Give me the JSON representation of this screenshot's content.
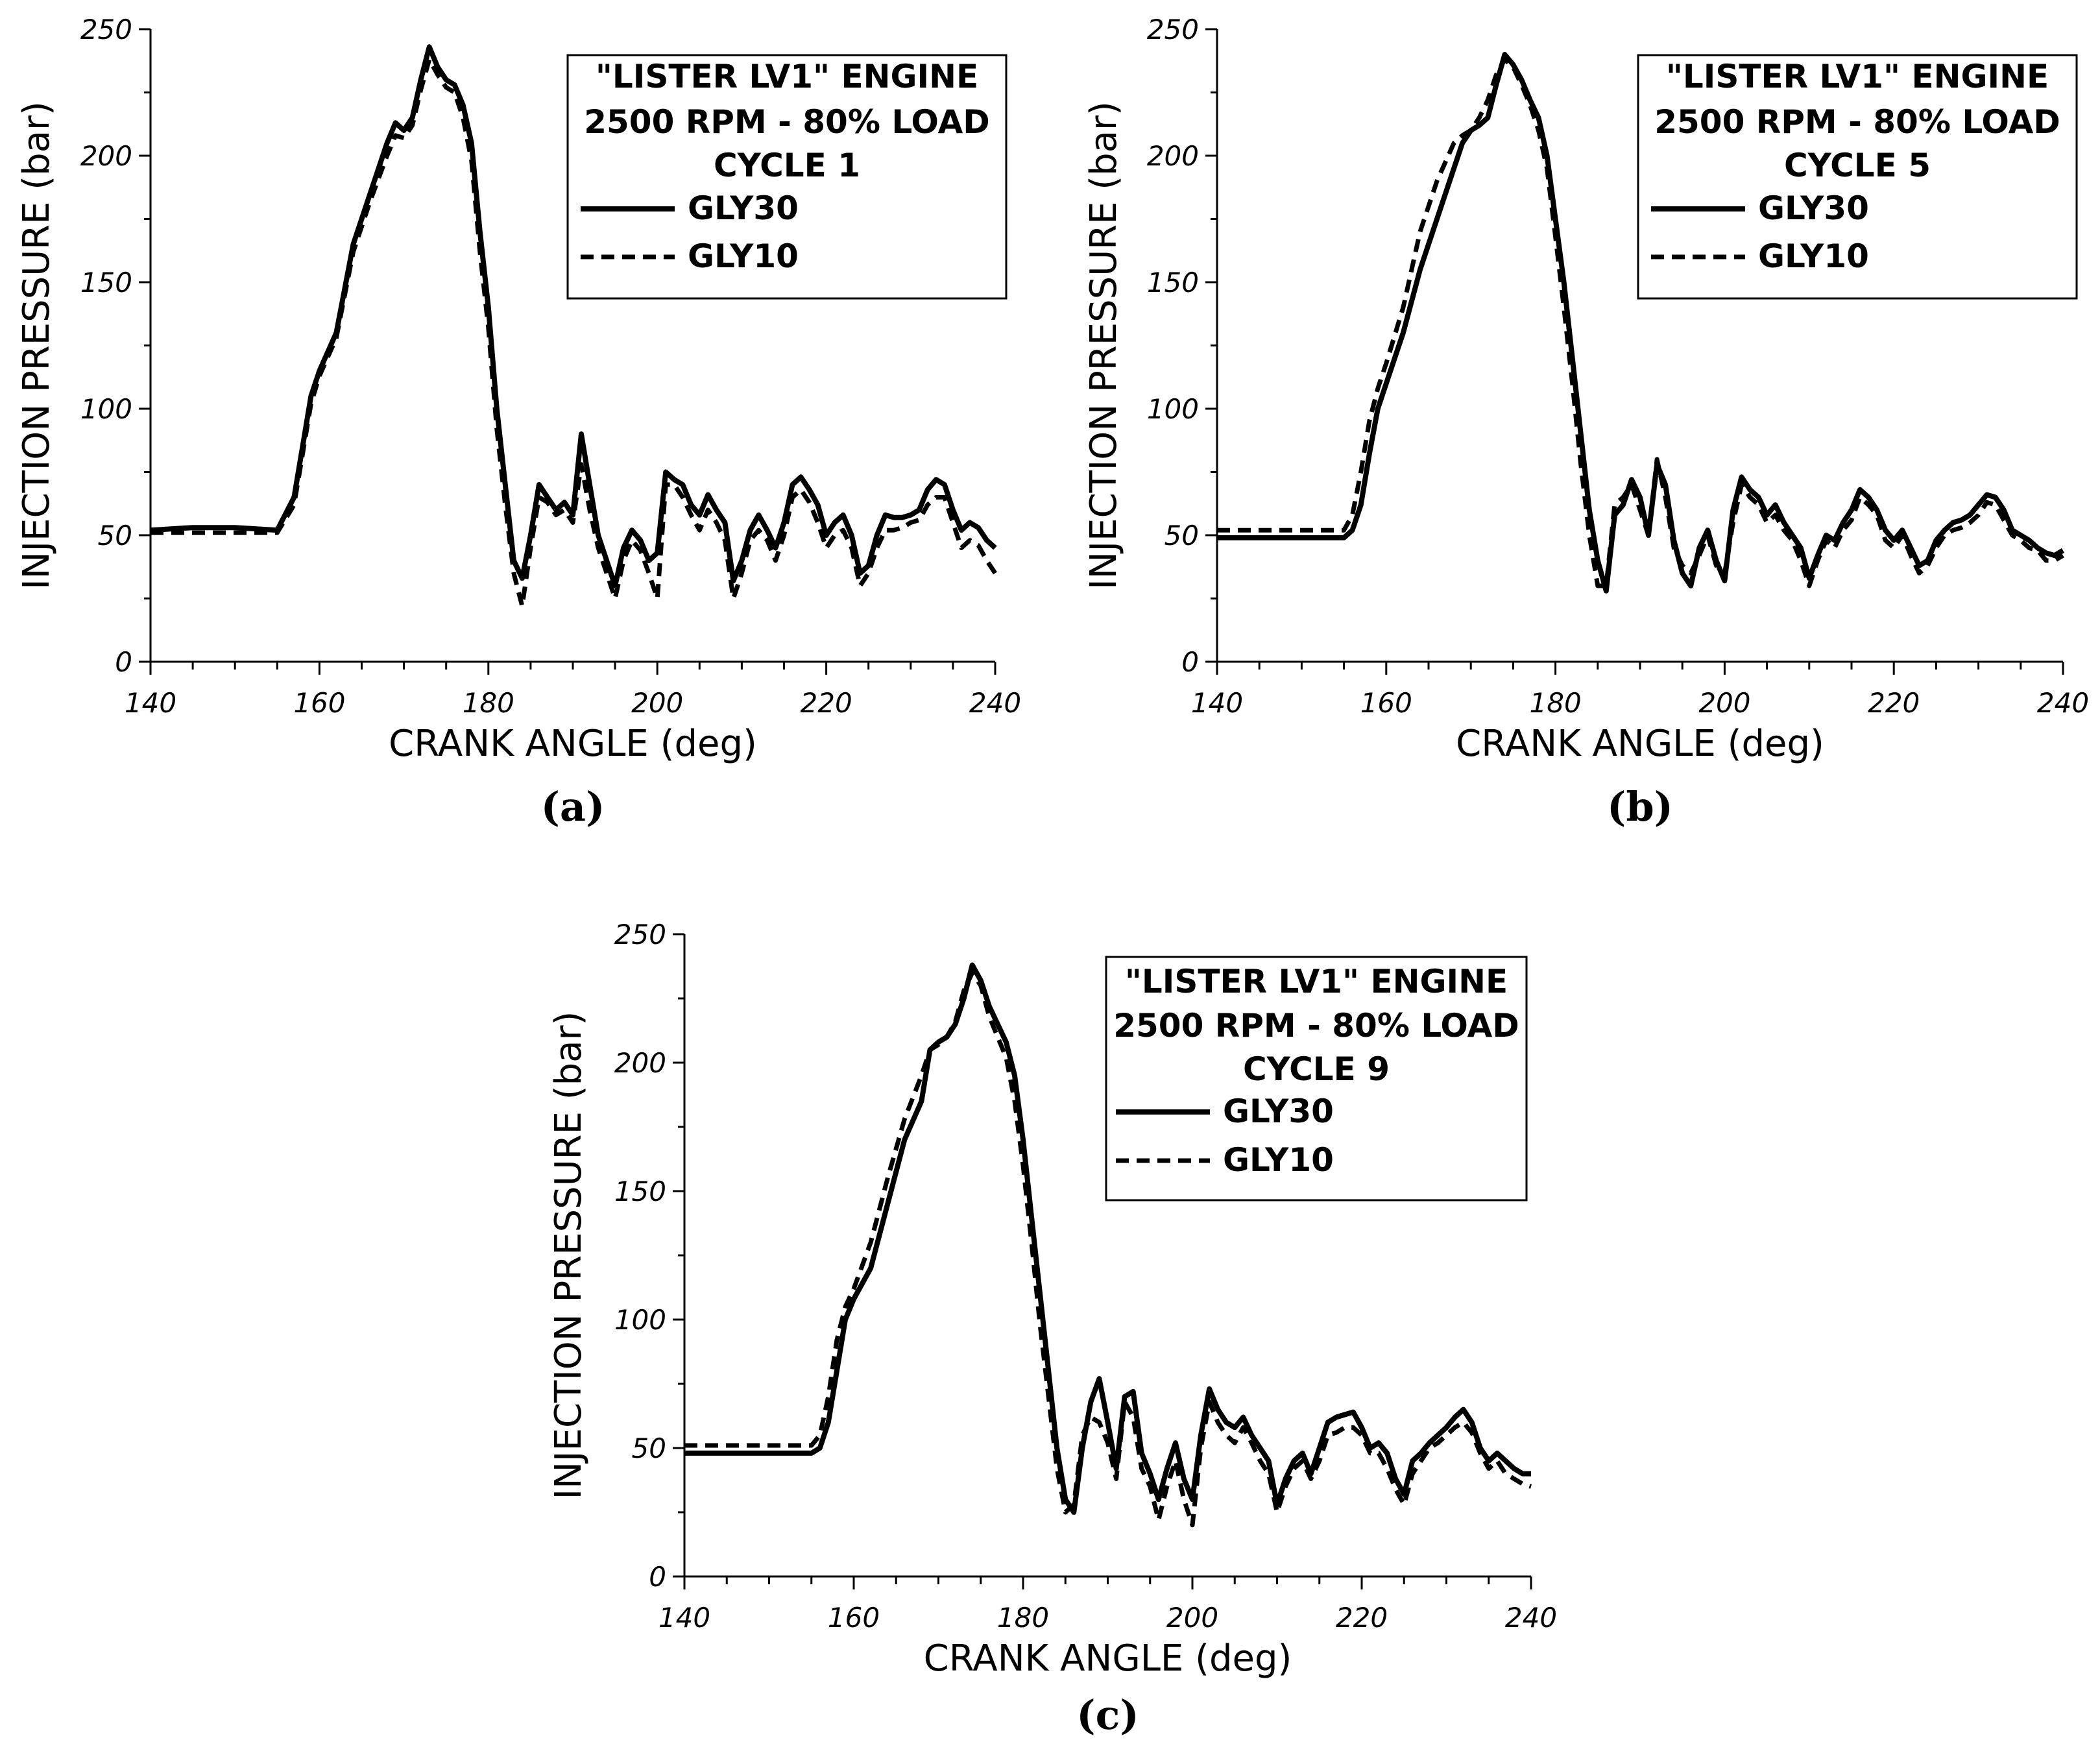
{
  "chart_data": [
    {
      "type": "line",
      "panel_label": "(a)",
      "xlabel": "CRANK ANGLE (deg)",
      "ylabel": "INJECTION PRESSURE (bar)",
      "xlim": [
        140,
        240
      ],
      "ylim": [
        0,
        250
      ],
      "xticks": [
        140,
        160,
        180,
        200,
        220,
        240
      ],
      "yticks": [
        0,
        50,
        100,
        150,
        200,
        250
      ],
      "legend": {
        "title_lines": [
          "\"LISTER LV1\" ENGINE",
          "2500 RPM - 80% LOAD",
          "CYCLE 1"
        ],
        "position": "top-right"
      },
      "series": [
        {
          "name": "GLY30",
          "style": "solid",
          "x": [
            140,
            145,
            150,
            155,
            157,
            158,
            159,
            160,
            162,
            164,
            166,
            168,
            169,
            170,
            171,
            172,
            173,
            174,
            175,
            176,
            177,
            178,
            179,
            180,
            181,
            182,
            183,
            184,
            185,
            186,
            187,
            188,
            189,
            190,
            191,
            192,
            193,
            194,
            195,
            196,
            197,
            198,
            199,
            200,
            201,
            202,
            203,
            204,
            205,
            206,
            207,
            208,
            209,
            210,
            211,
            212,
            213,
            214,
            215,
            216,
            217,
            218,
            219,
            220,
            221,
            222,
            223,
            224,
            225,
            226,
            227,
            228,
            229,
            230,
            231,
            232,
            233,
            234,
            235,
            236,
            237,
            238,
            239,
            240
          ],
          "values": [
            52,
            53,
            53,
            52,
            65,
            85,
            105,
            115,
            130,
            165,
            185,
            205,
            213,
            210,
            215,
            230,
            243,
            235,
            230,
            228,
            220,
            205,
            170,
            140,
            100,
            70,
            40,
            33,
            50,
            70,
            65,
            60,
            63,
            58,
            90,
            70,
            50,
            40,
            30,
            45,
            52,
            48,
            40,
            43,
            75,
            72,
            70,
            62,
            58,
            66,
            60,
            55,
            32,
            40,
            52,
            58,
            52,
            45,
            55,
            70,
            73,
            68,
            62,
            50,
            55,
            58,
            50,
            35,
            38,
            50,
            58,
            57,
            57,
            58,
            60,
            68,
            72,
            70,
            60,
            52,
            55,
            53,
            48,
            45
          ]
        },
        {
          "name": "GLY10",
          "style": "dashed",
          "x": [
            140,
            145,
            150,
            155,
            157,
            158,
            159,
            160,
            162,
            164,
            166,
            168,
            169,
            170,
            171,
            172,
            173,
            174,
            175,
            176,
            177,
            178,
            179,
            180,
            181,
            182,
            183,
            184,
            185,
            186,
            187,
            188,
            189,
            190,
            191,
            192,
            193,
            194,
            195,
            196,
            197,
            198,
            199,
            200,
            201,
            202,
            203,
            204,
            205,
            206,
            207,
            208,
            209,
            210,
            211,
            212,
            213,
            214,
            215,
            216,
            217,
            218,
            219,
            220,
            221,
            222,
            223,
            224,
            225,
            226,
            227,
            228,
            229,
            230,
            231,
            232,
            233,
            234,
            235,
            236,
            237,
            238,
            239,
            240
          ],
          "values": [
            51,
            51,
            51,
            51,
            62,
            82,
            102,
            113,
            128,
            162,
            182,
            200,
            208,
            207,
            212,
            226,
            238,
            232,
            227,
            225,
            215,
            198,
            162,
            132,
            92,
            62,
            35,
            22,
            45,
            65,
            63,
            58,
            60,
            55,
            78,
            60,
            45,
            35,
            25,
            40,
            48,
            44,
            35,
            25,
            70,
            70,
            65,
            58,
            52,
            60,
            55,
            48,
            25,
            35,
            48,
            52,
            48,
            40,
            50,
            65,
            68,
            63,
            55,
            45,
            50,
            52,
            45,
            30,
            35,
            45,
            52,
            52,
            53,
            55,
            56,
            62,
            65,
            65,
            55,
            45,
            48,
            46,
            40,
            35
          ]
        }
      ]
    },
    {
      "type": "line",
      "panel_label": "(b)",
      "xlabel": "CRANK ANGLE (deg)",
      "ylabel": "INJECTION PRESSURE (bar)",
      "xlim": [
        140,
        240
      ],
      "ylim": [
        0,
        250
      ],
      "xticks": [
        140,
        160,
        180,
        200,
        220,
        240
      ],
      "yticks": [
        0,
        50,
        100,
        150,
        200,
        250
      ],
      "legend": {
        "title_lines": [
          "\"LISTER LV1\" ENGINE",
          "2500 RPM - 80% LOAD",
          "CYCLE 5"
        ],
        "position": "top-right"
      },
      "series": [
        {
          "name": "GLY30",
          "style": "solid",
          "x": [
            140,
            145,
            150,
            155,
            156,
            157,
            158,
            159,
            160,
            162,
            164,
            166,
            168,
            169,
            170,
            171,
            172,
            173,
            174,
            175,
            176,
            177,
            178,
            179,
            180,
            181,
            182,
            183,
            184,
            185,
            186,
            187,
            188,
            189,
            190,
            191,
            192,
            193,
            194,
            195,
            196,
            197,
            198,
            199,
            200,
            201,
            202,
            203,
            204,
            205,
            206,
            207,
            208,
            209,
            210,
            211,
            212,
            213,
            214,
            215,
            216,
            217,
            218,
            219,
            220,
            221,
            222,
            223,
            224,
            225,
            226,
            227,
            228,
            229,
            230,
            231,
            232,
            233,
            234,
            235,
            236,
            237,
            238,
            239,
            240
          ],
          "values": [
            49,
            49,
            49,
            49,
            52,
            62,
            82,
            100,
            110,
            130,
            155,
            175,
            195,
            205,
            210,
            212,
            215,
            228,
            240,
            236,
            230,
            222,
            215,
            200,
            175,
            150,
            120,
            90,
            60,
            40,
            28,
            58,
            62,
            72,
            65,
            50,
            78,
            70,
            48,
            35,
            30,
            45,
            52,
            40,
            32,
            60,
            73,
            68,
            65,
            58,
            62,
            55,
            50,
            45,
            33,
            42,
            50,
            48,
            55,
            60,
            68,
            65,
            60,
            52,
            48,
            52,
            45,
            38,
            40,
            48,
            52,
            55,
            56,
            58,
            62,
            66,
            65,
            60,
            52,
            50,
            48,
            45,
            43,
            42,
            44
          ]
        },
        {
          "name": "GLY10",
          "style": "dashed",
          "x": [
            140,
            145,
            150,
            155,
            156,
            157,
            158,
            159,
            160,
            162,
            164,
            166,
            168,
            169,
            170,
            171,
            172,
            173,
            174,
            175,
            176,
            177,
            178,
            179,
            180,
            181,
            182,
            183,
            184,
            185,
            186,
            187,
            188,
            189,
            190,
            191,
            192,
            193,
            194,
            195,
            196,
            197,
            198,
            199,
            200,
            201,
            202,
            203,
            204,
            205,
            206,
            207,
            208,
            209,
            210,
            211,
            212,
            213,
            214,
            215,
            216,
            217,
            218,
            219,
            220,
            221,
            222,
            223,
            224,
            225,
            226,
            227,
            228,
            229,
            230,
            231,
            232,
            233,
            234,
            235,
            236,
            237,
            238,
            239,
            240
          ],
          "values": [
            52,
            52,
            52,
            52,
            58,
            75,
            95,
            108,
            118,
            140,
            170,
            190,
            205,
            208,
            210,
            215,
            222,
            232,
            238,
            235,
            228,
            220,
            210,
            195,
            168,
            140,
            110,
            78,
            50,
            30,
            30,
            62,
            65,
            70,
            60,
            50,
            80,
            65,
            45,
            38,
            35,
            42,
            50,
            38,
            35,
            55,
            70,
            65,
            62,
            55,
            58,
            52,
            48,
            40,
            30,
            40,
            48,
            45,
            52,
            56,
            65,
            62,
            58,
            48,
            45,
            50,
            42,
            35,
            38,
            45,
            50,
            52,
            53,
            55,
            58,
            63,
            62,
            56,
            50,
            48,
            45,
            44,
            40,
            40,
            42
          ]
        }
      ]
    },
    {
      "type": "line",
      "panel_label": "(c)",
      "xlabel": "CRANK ANGLE (deg)",
      "ylabel": "INJECTION PRESSURE (bar)",
      "xlim": [
        140,
        240
      ],
      "ylim": [
        0,
        250
      ],
      "xticks": [
        140,
        160,
        180,
        200,
        220,
        240
      ],
      "yticks": [
        0,
        50,
        100,
        150,
        200,
        250
      ],
      "legend": {
        "title_lines": [
          "\"LISTER LV1\" ENGINE",
          "2500 RPM - 80% LOAD",
          "CYCLE 9"
        ],
        "position": "top-right"
      },
      "series": [
        {
          "name": "GLY30",
          "style": "solid",
          "x": [
            140,
            145,
            150,
            155,
            156,
            157,
            158,
            159,
            160,
            162,
            164,
            166,
            168,
            169,
            170,
            171,
            172,
            173,
            174,
            175,
            176,
            177,
            178,
            179,
            180,
            181,
            182,
            183,
            184,
            185,
            186,
            187,
            188,
            189,
            190,
            191,
            192,
            193,
            194,
            195,
            196,
            197,
            198,
            199,
            200,
            201,
            202,
            203,
            204,
            205,
            206,
            207,
            208,
            209,
            210,
            211,
            212,
            213,
            214,
            215,
            216,
            217,
            218,
            219,
            220,
            221,
            222,
            223,
            224,
            225,
            226,
            227,
            228,
            229,
            230,
            231,
            232,
            233,
            234,
            235,
            236,
            237,
            238,
            239,
            240
          ],
          "values": [
            48,
            48,
            48,
            48,
            50,
            60,
            80,
            100,
            108,
            120,
            145,
            170,
            185,
            205,
            208,
            210,
            215,
            225,
            238,
            232,
            222,
            215,
            208,
            195,
            170,
            140,
            110,
            80,
            50,
            30,
            25,
            50,
            68,
            77,
            60,
            42,
            70,
            72,
            48,
            40,
            30,
            42,
            52,
            38,
            30,
            55,
            73,
            65,
            60,
            58,
            62,
            55,
            50,
            45,
            28,
            38,
            45,
            48,
            40,
            50,
            60,
            62,
            63,
            64,
            58,
            50,
            52,
            48,
            38,
            32,
            45,
            48,
            52,
            55,
            58,
            62,
            65,
            60,
            50,
            45,
            48,
            45,
            42,
            40,
            40
          ]
        },
        {
          "name": "GLY10",
          "style": "dashed",
          "x": [
            140,
            145,
            150,
            155,
            156,
            157,
            158,
            159,
            160,
            162,
            164,
            166,
            168,
            169,
            170,
            171,
            172,
            173,
            174,
            175,
            176,
            177,
            178,
            179,
            180,
            181,
            182,
            183,
            184,
            185,
            186,
            187,
            188,
            189,
            190,
            191,
            192,
            193,
            194,
            195,
            196,
            197,
            198,
            199,
            200,
            201,
            202,
            203,
            204,
            205,
            206,
            207,
            208,
            209,
            210,
            211,
            212,
            213,
            214,
            215,
            216,
            217,
            218,
            219,
            220,
            221,
            222,
            223,
            224,
            225,
            226,
            227,
            228,
            229,
            230,
            231,
            232,
            233,
            234,
            235,
            236,
            237,
            238,
            239,
            240
          ],
          "values": [
            51,
            51,
            51,
            51,
            55,
            70,
            92,
            105,
            112,
            130,
            155,
            178,
            195,
            205,
            207,
            210,
            216,
            228,
            235,
            230,
            218,
            210,
            202,
            185,
            160,
            130,
            98,
            70,
            42,
            25,
            28,
            55,
            62,
            60,
            52,
            38,
            68,
            62,
            42,
            35,
            22,
            35,
            45,
            30,
            20,
            50,
            68,
            60,
            55,
            52,
            58,
            52,
            45,
            40,
            25,
            35,
            42,
            45,
            38,
            45,
            55,
            56,
            58,
            58,
            55,
            48,
            48,
            42,
            34,
            28,
            40,
            45,
            50,
            52,
            55,
            58,
            60,
            56,
            48,
            42,
            45,
            40,
            38,
            36,
            35
          ]
        }
      ]
    }
  ]
}
